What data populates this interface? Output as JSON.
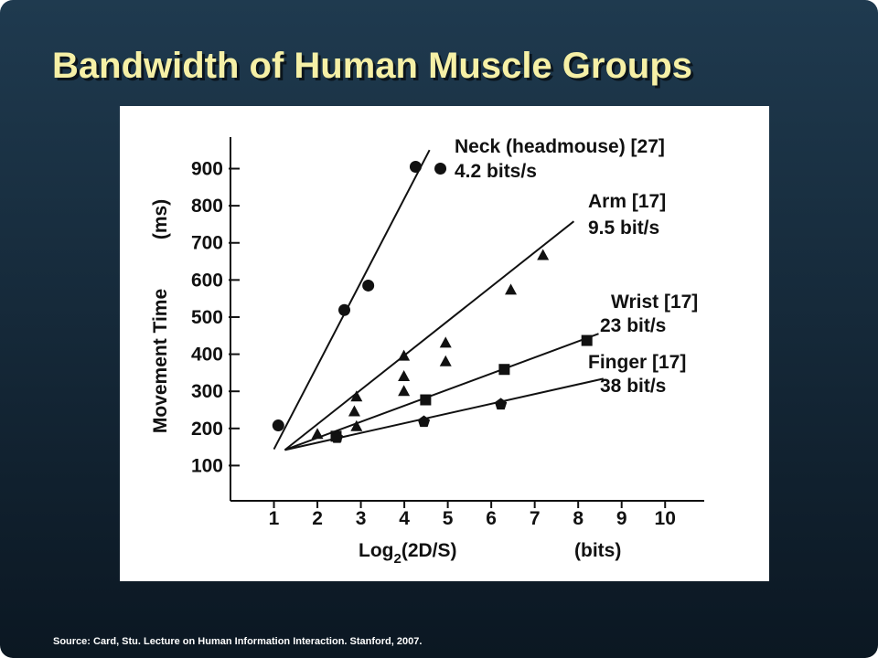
{
  "slide_title": "Bandwidth of Human Muscle Groups",
  "source": "Source: Card, Stu.  Lecture on Human Information Interaction.  Stanford, 2007.",
  "chart_data": {
    "type": "scatter",
    "ylabel": "Movement Time",
    "ylabel_unit": "(ms)",
    "xlabel": [
      "Log",
      "2",
      "(2D/S)"
    ],
    "xlabel_unit": "(bits)",
    "xlim": [
      0,
      10.9
    ],
    "xticks": [
      1,
      2,
      3,
      4,
      5,
      6,
      7,
      8,
      9,
      10
    ],
    "ylim": [
      5,
      985
    ],
    "yticks": [
      100,
      200,
      300,
      400,
      500,
      600,
      700,
      800,
      900
    ],
    "grid": false,
    "series": [
      {
        "name": "Neck (headmouse) [27]",
        "rate": "4.2 bits/s",
        "color": "#111111",
        "marker": "circle",
        "x": [
          1.1,
          2.62,
          3.17,
          4.26,
          4.83
        ],
        "values": [
          208,
          519,
          585,
          905,
          900
        ],
        "fit_x": [
          1,
          4.58
        ],
        "fit_y": [
          144,
          950
        ]
      },
      {
        "name": "Arm [17]",
        "rate": "9.5 bit/s",
        "color": "#111111",
        "marker": "triangle",
        "x": [
          2.0,
          2.9,
          2.85,
          2.9,
          3.99,
          3.99,
          3.99,
          4.95,
          4.95,
          6.45,
          7.19
        ],
        "values": [
          184,
          285,
          245,
          205,
          395,
          340,
          300,
          430,
          380,
          573,
          666
        ],
        "fit_x": [
          1.25,
          7.9
        ],
        "fit_y": [
          142,
          758
        ]
      },
      {
        "name": "Wrist [17]",
        "rate": "23 bit/s",
        "color": "#111111",
        "marker": "square",
        "x": [
          2.43,
          4.49,
          6.3,
          8.2
        ],
        "values": [
          179,
          277,
          359,
          437
        ],
        "fit_x": [
          1.25,
          8.47
        ],
        "fit_y": [
          142,
          455
        ]
      },
      {
        "name": "Finger [17]",
        "rate": "38 bit/s",
        "color": "#111111",
        "marker": "pentagon",
        "x": [
          2.45,
          4.45,
          6.22
        ],
        "values": [
          175,
          218,
          265
        ],
        "fit_x": [
          1.25,
          8.58
        ],
        "fit_y": [
          142,
          334
        ]
      }
    ]
  }
}
